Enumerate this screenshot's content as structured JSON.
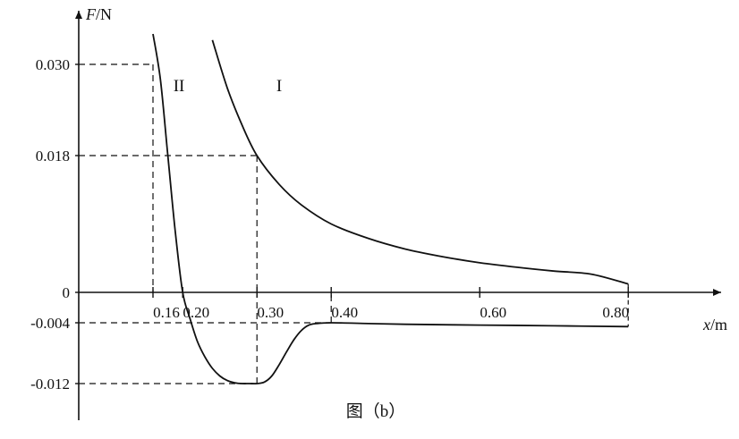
{
  "chart_data": {
    "type": "line",
    "title": "",
    "caption": "图（b）",
    "ylabel": {
      "var": "F",
      "unit": "/N"
    },
    "xlabel": {
      "var": "x",
      "unit": "/m"
    },
    "x_ticks": [
      "0.16",
      "0.20",
      "0.30",
      "0.40",
      "0.60",
      "0.80"
    ],
    "y_ticks": [
      "0.030",
      "0.018",
      "0",
      "-0.004",
      "-0.012"
    ],
    "xlim": [
      0.06,
      0.87
    ],
    "ylim": [
      -0.0167,
      0.0364
    ],
    "series": [
      {
        "name": "I",
        "x": [
          0.24,
          0.26,
          0.28,
          0.3,
          0.33,
          0.36,
          0.4,
          0.45,
          0.5,
          0.55,
          0.6,
          0.65,
          0.7,
          0.75,
          0.8
        ],
        "y": [
          0.0332,
          0.0269,
          0.022,
          0.018,
          0.0142,
          0.0115,
          0.009,
          0.0071,
          0.0057,
          0.0047,
          0.0039,
          0.0033,
          0.0028,
          0.0024,
          0.0011
        ]
      },
      {
        "name": "II",
        "x": [
          0.16,
          0.17,
          0.18,
          0.19,
          0.2,
          0.21,
          0.22,
          0.23,
          0.24,
          0.25,
          0.26,
          0.27,
          0.28,
          0.29,
          0.3,
          0.31,
          0.32,
          0.33,
          0.34,
          0.35,
          0.36,
          0.37,
          0.38,
          0.4,
          0.45,
          0.5,
          0.6,
          0.7,
          0.8
        ],
        "y": [
          0.034,
          0.028,
          0.018,
          0.008,
          0.0,
          -0.0035,
          -0.0065,
          -0.0085,
          -0.01,
          -0.011,
          -0.0116,
          -0.0119,
          -0.012,
          -0.012,
          -0.012,
          -0.0118,
          -0.011,
          -0.0095,
          -0.0078,
          -0.0062,
          -0.005,
          -0.0043,
          -0.0041,
          -0.004,
          -0.0041,
          -0.0042,
          -0.0043,
          -0.0044,
          -0.0045
        ]
      }
    ],
    "guide_lines": [
      {
        "x": 0.16,
        "y": 0.03
      },
      {
        "x": 0.3,
        "y": 0.018
      },
      {
        "x": 0.3,
        "y": -0.012
      },
      {
        "x": 0.4,
        "y": -0.004
      }
    ],
    "grid": false,
    "legend": "none"
  }
}
